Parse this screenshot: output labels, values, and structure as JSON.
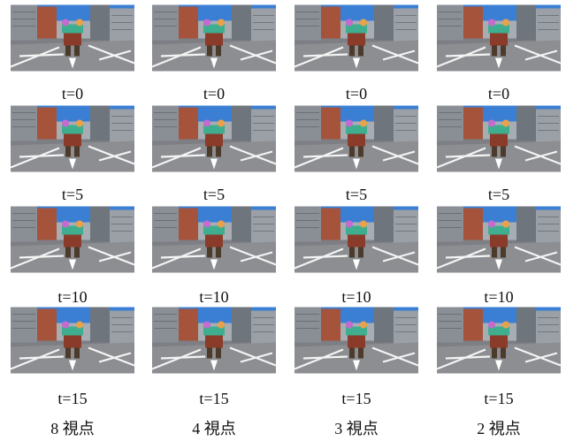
{
  "columns": [
    {
      "label": "8 視点",
      "frames": [
        "t=0",
        "t=5",
        "t=10",
        "t=15"
      ]
    },
    {
      "label": "4 視点",
      "frames": [
        "t=0",
        "t=5",
        "t=10",
        "t=15"
      ]
    },
    {
      "label": "3 視点",
      "frames": [
        "t=0",
        "t=5",
        "t=10",
        "t=15"
      ]
    },
    {
      "label": "2 視点",
      "frames": [
        "t=0",
        "t=5",
        "t=10",
        "t=15"
      ]
    }
  ]
}
